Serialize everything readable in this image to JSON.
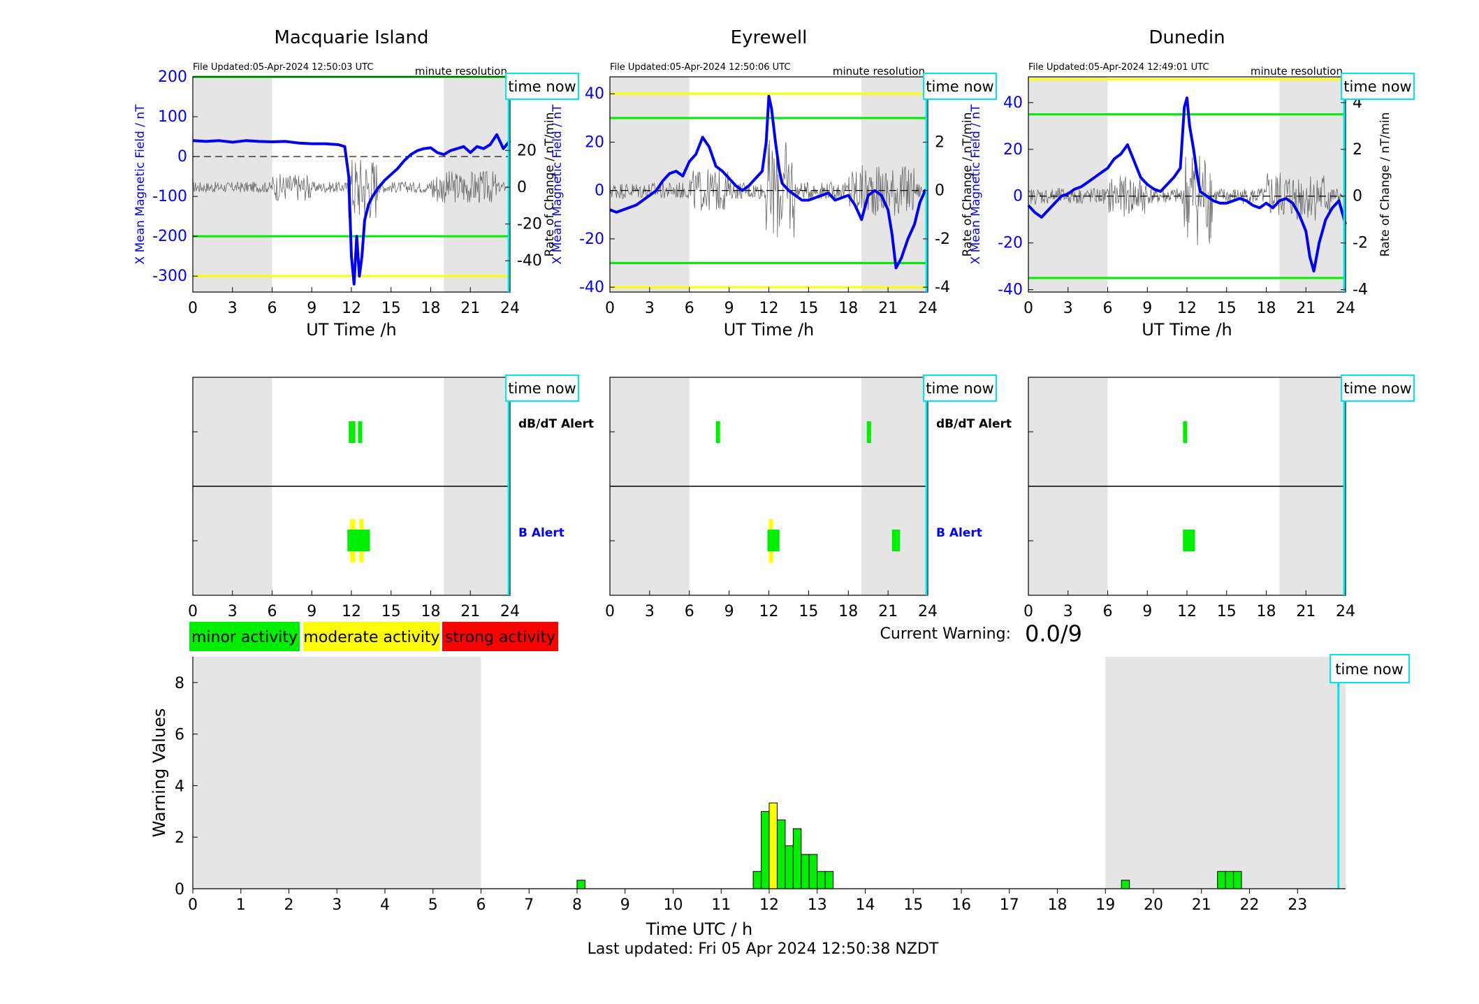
{
  "stations": [
    {
      "name": "Macquarie Island",
      "file_updated": "File Updated:05-Apr-2024 12:50:03 UTC",
      "resolution": "minute resolution",
      "left_ylabel": "X Mean Magnetic Field / nT",
      "right_ylabel": "Rate of Change / nT/min",
      "xlabel": "UT Time /h",
      "ylim": [
        -340,
        200
      ],
      "left_ticks": [
        200,
        100,
        0,
        -100,
        -200,
        -300
      ],
      "rate_ylim": [
        -57,
        60
      ],
      "rate_ticks": [
        20,
        0,
        -20,
        -40
      ],
      "green_levels": [
        200,
        -200
      ],
      "yellow_levels": [
        -300
      ],
      "time_now_label": "time now",
      "now_hour": 23.9,
      "field_series": {
        "x": [
          0,
          1,
          2,
          3,
          4,
          5,
          6,
          7,
          8,
          9,
          10,
          11,
          11.5,
          11.8,
          12,
          12.2,
          12.4,
          12.6,
          12.8,
          13,
          13.3,
          13.6,
          14,
          14.5,
          15,
          15.5,
          16,
          16.5,
          17,
          17.5,
          18,
          18.5,
          19,
          19.5,
          20,
          20.5,
          21,
          21.5,
          22,
          22.5,
          23,
          23.5,
          24
        ],
        "y": [
          40,
          38,
          40,
          36,
          40,
          38,
          37,
          38,
          34,
          32,
          32,
          30,
          25,
          -50,
          -250,
          -320,
          -200,
          -300,
          -250,
          -160,
          -120,
          -100,
          -80,
          -60,
          -45,
          -30,
          -10,
          5,
          15,
          20,
          22,
          10,
          5,
          15,
          20,
          25,
          10,
          25,
          20,
          30,
          55,
          20,
          40
        ]
      },
      "dbdt_alerts": [
        {
          "start": 11.8,
          "end": 12.3
        },
        {
          "start": 12.5,
          "end": 12.8
        }
      ],
      "b_alerts": [
        {
          "start": 11.7,
          "end": 13.4,
          "level": "minor"
        },
        {
          "start": 11.9,
          "end": 12.3,
          "level": "moderate"
        },
        {
          "start": 12.6,
          "end": 12.9,
          "level": "moderate"
        }
      ]
    },
    {
      "name": "Eyrewell",
      "file_updated": "File Updated:05-Apr-2024 12:50:06 UTC",
      "resolution": "minute resolution",
      "left_ylabel": "X Mean Magnetic Field / nT",
      "right_ylabel": "Rate of Change / nT/min",
      "xlabel": "UT Time /h",
      "ylim": [
        -42,
        47
      ],
      "left_ticks": [
        40,
        20,
        0,
        -20,
        -40
      ],
      "rate_ylim": [
        -4.2,
        4.7
      ],
      "rate_ticks": [
        4,
        2,
        0,
        -2,
        -4
      ],
      "green_levels": [
        30,
        -30
      ],
      "yellow_levels": [
        40,
        -40
      ],
      "time_now_label": "time now",
      "now_hour": 23.9,
      "field_series": {
        "x": [
          0,
          0.5,
          1,
          1.5,
          2,
          2.5,
          3,
          3.5,
          4,
          4.5,
          5,
          5.5,
          6,
          6.5,
          7,
          7.5,
          8,
          8.5,
          9,
          9.5,
          10,
          10.5,
          11,
          11.5,
          11.8,
          12,
          12.2,
          12.5,
          12.8,
          13,
          13.5,
          14,
          14.5,
          15,
          15.5,
          16,
          16.5,
          17,
          17.5,
          18,
          18.5,
          19,
          19.5,
          20,
          20.5,
          21,
          21.3,
          21.6,
          22,
          22.5,
          23,
          23.4,
          23.8,
          24
        ],
        "y": [
          -8,
          -9,
          -8,
          -7,
          -6,
          -4,
          -2,
          0,
          4,
          7,
          8,
          6,
          12,
          15,
          22,
          18,
          10,
          8,
          5,
          2,
          0,
          2,
          5,
          8,
          20,
          39,
          34,
          20,
          8,
          3,
          0,
          -2,
          -4,
          -4,
          -3,
          -2,
          -1,
          -4,
          -3,
          -2,
          -6,
          -12,
          -2,
          0,
          -2,
          -8,
          -18,
          -32,
          -28,
          -20,
          -14,
          -5,
          0,
          0
        ]
      },
      "dbdt_alerts": [
        {
          "start": 8.0,
          "end": 8.3
        },
        {
          "start": 19.4,
          "end": 19.7
        }
      ],
      "b_alerts": [
        {
          "start": 11.9,
          "end": 12.8,
          "level": "minor"
        },
        {
          "start": 12.0,
          "end": 12.3,
          "level": "moderate"
        },
        {
          "start": 21.3,
          "end": 21.9,
          "level": "minor"
        }
      ]
    },
    {
      "name": "Dunedin",
      "file_updated": "File Updated:05-Apr-2024 12:49:01 UTC",
      "resolution": "minute resolution",
      "left_ylabel": "X Mean Magnetic Field / nT",
      "right_ylabel": "Rate of Change / nT/min",
      "xlabel": "UT Time /h",
      "ylim": [
        -41,
        51
      ],
      "left_ticks": [
        40,
        20,
        0,
        -20,
        -40
      ],
      "rate_ylim": [
        -4.1,
        5.1
      ],
      "rate_ticks": [
        4,
        2,
        0,
        -2,
        -4
      ],
      "green_levels": [
        35,
        -35
      ],
      "yellow_levels": [
        50
      ],
      "time_now_label": "time now",
      "now_hour": 23.9,
      "field_series": {
        "x": [
          0,
          0.5,
          1,
          1.5,
          2,
          2.5,
          3,
          3.5,
          4,
          4.5,
          5,
          5.5,
          6,
          6.5,
          7,
          7.5,
          8,
          8.5,
          9,
          9.5,
          10,
          10.5,
          11,
          11.5,
          11.8,
          12,
          12.2,
          12.5,
          12.8,
          13,
          13.5,
          14,
          14.5,
          15,
          15.5,
          16,
          16.5,
          17,
          17.5,
          18,
          18.5,
          19,
          19.5,
          20,
          20.5,
          21,
          21.3,
          21.6,
          22,
          22.5,
          23,
          23.5,
          24
        ],
        "y": [
          -4,
          -7,
          -9,
          -6,
          -3,
          0,
          1,
          3,
          4,
          6,
          8,
          10,
          12,
          16,
          18,
          22,
          15,
          8,
          5,
          3,
          2,
          5,
          8,
          12,
          38,
          42,
          30,
          20,
          8,
          2,
          0,
          -2,
          -3,
          -3,
          -2,
          -1,
          -2,
          -4,
          -5,
          -3,
          -5,
          -2,
          -1,
          -3,
          -8,
          -15,
          -26,
          -32,
          -20,
          -10,
          -5,
          -2,
          -12
        ]
      },
      "dbdt_alerts": [
        {
          "start": 11.7,
          "end": 12.0
        }
      ],
      "b_alerts": [
        {
          "start": 11.7,
          "end": 12.6,
          "level": "minor"
        }
      ]
    }
  ],
  "alert_labels": {
    "dbdt": "dB/dT Alert",
    "b": "B Alert"
  },
  "legend": [
    {
      "label": "minor activity",
      "color": "#00ee00"
    },
    {
      "label": "moderate activity",
      "color": "#ffff00"
    },
    {
      "label": "strong activity",
      "color": "#ff0000"
    }
  ],
  "current_warning_label": "Current Warning:",
  "current_warning_value": "0.0/9",
  "hour_ticks_24": [
    "0",
    "3",
    "6",
    "9",
    "12",
    "15",
    "18",
    "21",
    "24"
  ],
  "colors": {
    "field": "#0000ee",
    "minor": "#00ee00",
    "moderate": "#ffff00",
    "strong": "#ff0000",
    "now": "#00e5ee",
    "night": "#e5e5e5"
  },
  "night_bands": [
    {
      "start": 0,
      "end": 6
    },
    {
      "start": 19,
      "end": 24
    }
  ],
  "chart_data": {
    "type": "bar",
    "xlabel": "Time UTC / h",
    "ylabel": "Warning Values",
    "xlim": [
      0,
      24
    ],
    "ylim": [
      0,
      9
    ],
    "x_ticks": [
      "0",
      "1",
      "2",
      "3",
      "4",
      "5",
      "6",
      "7",
      "8",
      "9",
      "10",
      "11",
      "12",
      "13",
      "14",
      "15",
      "16",
      "17",
      "18",
      "19",
      "20",
      "21",
      "22",
      "23"
    ],
    "y_ticks": [
      "0",
      "2",
      "4",
      "6",
      "8"
    ],
    "night_bands": [
      {
        "start": 0,
        "end": 6
      },
      {
        "start": 19,
        "end": 24
      }
    ],
    "now_hour": 23.85,
    "time_now_label": "time now",
    "bars": [
      {
        "x": 8.083,
        "value": 0.33,
        "level": "minor"
      },
      {
        "x": 11.75,
        "value": 0.67,
        "level": "minor"
      },
      {
        "x": 11.917,
        "value": 3.0,
        "level": "minor"
      },
      {
        "x": 12.083,
        "value": 3.33,
        "level": "moderate"
      },
      {
        "x": 12.25,
        "value": 2.67,
        "level": "minor"
      },
      {
        "x": 12.417,
        "value": 1.67,
        "level": "minor"
      },
      {
        "x": 12.583,
        "value": 2.33,
        "level": "minor"
      },
      {
        "x": 12.75,
        "value": 1.33,
        "level": "minor"
      },
      {
        "x": 12.917,
        "value": 1.33,
        "level": "minor"
      },
      {
        "x": 13.083,
        "value": 0.67,
        "level": "minor"
      },
      {
        "x": 13.25,
        "value": 0.67,
        "level": "minor"
      },
      {
        "x": 19.417,
        "value": 0.33,
        "level": "minor"
      },
      {
        "x": 21.417,
        "value": 0.67,
        "level": "minor"
      },
      {
        "x": 21.583,
        "value": 0.67,
        "level": "minor"
      },
      {
        "x": 21.75,
        "value": 0.67,
        "level": "minor"
      }
    ]
  },
  "footer": "Last updated: Fri 05 Apr 2024 12:50:38 NZDT"
}
